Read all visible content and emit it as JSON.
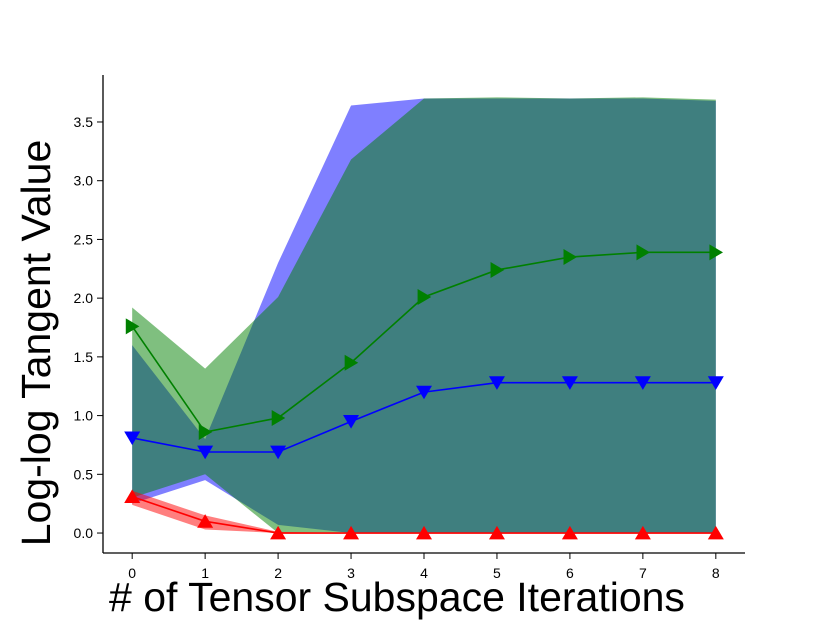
{
  "chart_data": {
    "type": "line",
    "title": "",
    "xlabel": "# of Tensor Subspace Iterations",
    "ylabel": "Log-log Tangent Value",
    "x": [
      0,
      1,
      2,
      3,
      4,
      5,
      6,
      7,
      8
    ],
    "xlim": [
      -0.4,
      8.4
    ],
    "ylim": [
      -0.17,
      3.9
    ],
    "xticks": [
      "0",
      "1",
      "2",
      "3",
      "4",
      "5",
      "6",
      "7",
      "8"
    ],
    "yticks": [
      "0.0",
      "0.5",
      "1.0",
      "1.5",
      "2.0",
      "2.5",
      "3.0",
      "3.5"
    ],
    "grid": false,
    "series": [
      {
        "color": "#0000ff",
        "marker": "triangle-down",
        "values": [
          0.81,
          0.69,
          0.69,
          0.95,
          1.2,
          1.28,
          1.28,
          1.28,
          1.28
        ],
        "band_lower": [
          0.25,
          0.45,
          0.07,
          0.0,
          0.0,
          0.0,
          0.0,
          0.0,
          0.0
        ],
        "band_upper": [
          1.6,
          0.8,
          2.3,
          3.64,
          3.7,
          3.7,
          3.7,
          3.7,
          3.68
        ]
      },
      {
        "color": "#008000",
        "marker": "triangle-right",
        "values": [
          1.76,
          0.86,
          0.98,
          1.45,
          2.01,
          2.24,
          2.35,
          2.39,
          2.39
        ],
        "band_lower": [
          0.3,
          0.5,
          0.0,
          0.0,
          0.0,
          0.0,
          0.0,
          0.0,
          0.0
        ],
        "band_upper": [
          1.92,
          1.4,
          2.01,
          3.18,
          3.7,
          3.71,
          3.7,
          3.71,
          3.69
        ]
      },
      {
        "color": "#ff0000",
        "marker": "triangle-up",
        "values": [
          0.31,
          0.1,
          0.0,
          0.0,
          0.0,
          0.0,
          0.0,
          0.0,
          0.0
        ],
        "band_lower": [
          0.24,
          0.03,
          0.0,
          0.0,
          0.0,
          0.0,
          0.0,
          0.0,
          0.0
        ],
        "band_upper": [
          0.36,
          0.15,
          0.01,
          0.0,
          0.0,
          0.0,
          0.0,
          0.0,
          0.0
        ]
      }
    ]
  }
}
